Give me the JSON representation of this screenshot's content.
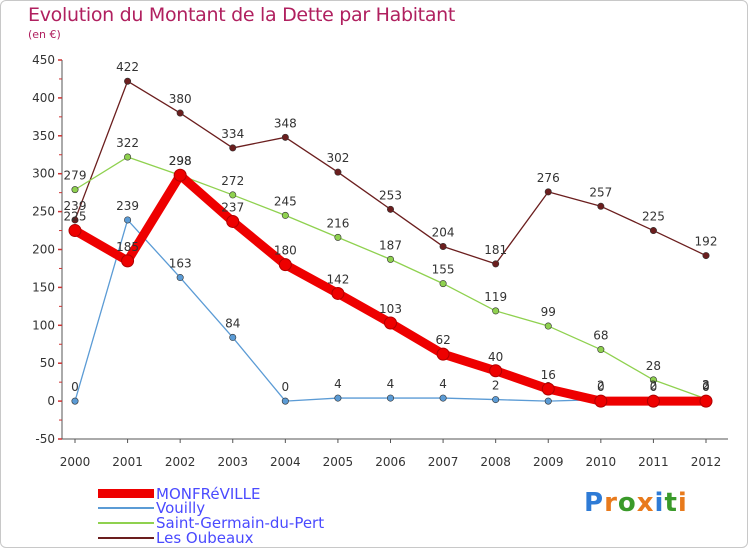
{
  "header": {
    "title": "Evolution du Montant de la Dette par Habitant",
    "unit": "(en €)"
  },
  "brand": {
    "text": "Proxiti",
    "letters": [
      "P",
      "r",
      "o",
      "x",
      "i",
      "t",
      "i"
    ],
    "letter_colors": [
      "#2e7bd6",
      "#e87a1c",
      "#3a9a2a",
      "#e87a1c",
      "#2e7bd6",
      "#3a9a2a",
      "#e87a1c"
    ]
  },
  "chart_data": {
    "type": "line",
    "x": [
      "2000",
      "2001",
      "2002",
      "2003",
      "2004",
      "2005",
      "2006",
      "2007",
      "2008",
      "2009",
      "2010",
      "2011",
      "2012"
    ],
    "ylim": [
      -50,
      450
    ],
    "yticks": [
      "-50",
      "0",
      "50",
      "100",
      "150",
      "200",
      "250",
      "300",
      "350",
      "400",
      "450"
    ],
    "grid": false,
    "legend_position": "bottom-left",
    "series": [
      {
        "name": "Les Oubeaux",
        "color": "#6b1e1e",
        "values": [
          239,
          422,
          380,
          334,
          348,
          302,
          253,
          204,
          181,
          276,
          257,
          225,
          192
        ],
        "labels": [
          "239",
          "422",
          "380",
          "334",
          "348",
          "302",
          "253",
          "204",
          "181",
          "276",
          "257",
          "225",
          "192"
        ]
      },
      {
        "name": "Saint-Germain-du-Pert",
        "color": "#8fd14f",
        "values": [
          279,
          322,
          298,
          272,
          245,
          216,
          187,
          155,
          119,
          99,
          68,
          28,
          3
        ],
        "labels": [
          "279",
          "322",
          "298",
          "272",
          "245",
          "216",
          "187",
          "155",
          "119",
          "99",
          "68",
          "28",
          "3"
        ]
      },
      {
        "name": "Vouilly",
        "color": "#5b9bd5",
        "values": [
          0,
          239,
          163,
          84,
          0,
          4,
          4,
          4,
          2,
          0,
          2,
          2,
          2
        ],
        "labels": [
          "0",
          "239",
          "163",
          "84",
          "0",
          "4",
          "4",
          "4",
          "2",
          "0",
          "2",
          "2",
          "2"
        ]
      },
      {
        "name": "MONFRéVILLE",
        "color": "#ee0000",
        "values": [
          225,
          185,
          298,
          237,
          180,
          142,
          103,
          62,
          40,
          16,
          0,
          0,
          0
        ],
        "labels": [
          "225",
          "185",
          "298",
          "237",
          "180",
          "142",
          "103",
          "62",
          "40",
          "16",
          "0",
          "0",
          "0"
        ]
      }
    ],
    "legend": [
      "MONFRéVILLE",
      "Vouilly",
      "Saint-Germain-du-Pert",
      "Les Oubeaux"
    ]
  }
}
